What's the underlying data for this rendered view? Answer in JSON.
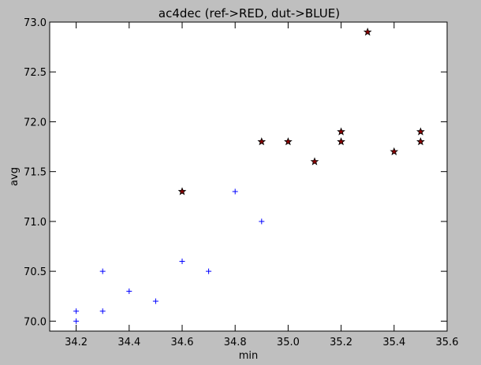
{
  "chart_data": {
    "type": "scatter",
    "title": "ac4dec (ref->RED, dut->BLUE)",
    "xlabel": "min",
    "ylabel": "avg",
    "xlim": [
      34.1,
      35.6
    ],
    "ylim": [
      69.9,
      73.0
    ],
    "xticks": [
      "34.2",
      "34.4",
      "34.6",
      "34.8",
      "35.0",
      "35.2",
      "35.4",
      "35.6"
    ],
    "yticks": [
      "70.0",
      "70.5",
      "71.0",
      "71.5",
      "72.0",
      "72.5",
      "73.0"
    ],
    "grid": false,
    "series": [
      {
        "marker": "star",
        "color": "#8b0000",
        "edge_color": "#000000",
        "points": [
          [
            34.6,
            71.3
          ],
          [
            34.9,
            71.8
          ],
          [
            35.0,
            71.8
          ],
          [
            35.1,
            71.6
          ],
          [
            35.2,
            71.9
          ],
          [
            35.2,
            71.8
          ],
          [
            35.3,
            72.9
          ],
          [
            35.4,
            71.7
          ],
          [
            35.5,
            71.9
          ],
          [
            35.5,
            71.8
          ]
        ]
      },
      {
        "marker": "plus",
        "color": "#0000ff",
        "points": [
          [
            34.2,
            70.1
          ],
          [
            34.2,
            70.0
          ],
          [
            34.3,
            70.5
          ],
          [
            34.3,
            70.1
          ],
          [
            34.4,
            70.3
          ],
          [
            34.5,
            70.2
          ],
          [
            34.6,
            70.6
          ],
          [
            34.7,
            70.5
          ],
          [
            34.8,
            71.3
          ],
          [
            34.9,
            71.0
          ]
        ]
      }
    ]
  }
}
